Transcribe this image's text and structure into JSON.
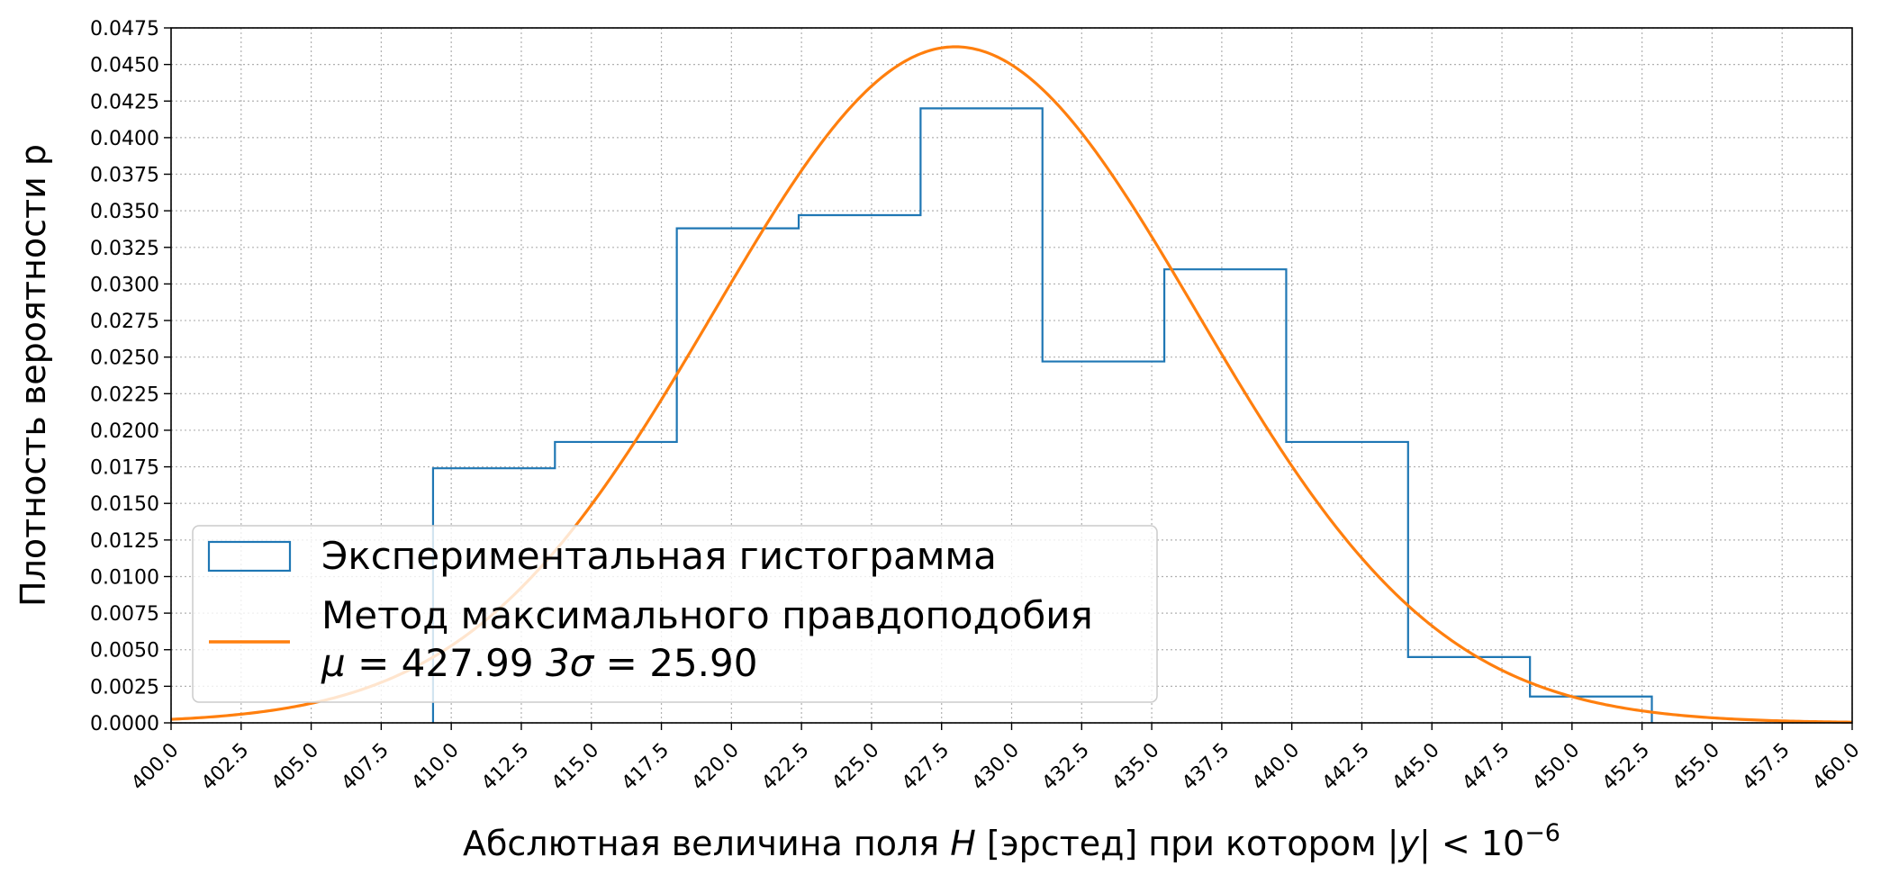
{
  "chart_data": {
    "type": "histogram_with_fit",
    "xlabel_main": "Абслютная величина поля ",
    "xlabel_var": "H",
    "xlabel_rest": " [эрстед] при котором |",
    "xlabel_y": "y",
    "xlabel_tail": "| < 10",
    "xlabel_exp": "−6",
    "ylabel": "Плотность вероятности p",
    "xlim": [
      400.0,
      460.0
    ],
    "ylim": [
      0.0,
      0.0475
    ],
    "x_ticks": [
      "400.0",
      "402.5",
      "405.0",
      "407.5",
      "410.0",
      "412.5",
      "415.0",
      "417.5",
      "420.0",
      "422.5",
      "425.0",
      "427.5",
      "430.0",
      "432.5",
      "435.0",
      "437.5",
      "440.0",
      "442.5",
      "445.0",
      "447.5",
      "450.0",
      "452.5",
      "455.0",
      "457.5",
      "460.0"
    ],
    "y_ticks": [
      "0.0000",
      "0.0025",
      "0.0050",
      "0.0075",
      "0.0100",
      "0.0125",
      "0.0150",
      "0.0175",
      "0.0200",
      "0.0225",
      "0.0250",
      "0.0275",
      "0.0300",
      "0.0325",
      "0.0350",
      "0.0375",
      "0.0400",
      "0.0425",
      "0.0450",
      "0.0475"
    ],
    "grid": true,
    "legend_placement": "lower-left",
    "histogram": {
      "name": "Экспериментальная гистограмма",
      "color": "#1f77b4",
      "bin_edges": [
        409.35,
        413.7,
        418.05,
        422.4,
        426.75,
        431.1,
        435.45,
        439.8,
        444.15,
        448.5,
        452.85
      ],
      "densities": [
        0.0174,
        0.0192,
        0.0338,
        0.0347,
        0.042,
        0.0247,
        0.031,
        0.0192,
        0.0045,
        0.0018
      ]
    },
    "fit": {
      "name": "Метод максимального правдоподобия",
      "params_prefix": "μ = ",
      "mu": 427.99,
      "params_middle": " 3σ = ",
      "three_sigma": 25.9,
      "mu_label": "427.99",
      "three_sigma_label": "25.90",
      "color": "#ff7f0e"
    }
  }
}
